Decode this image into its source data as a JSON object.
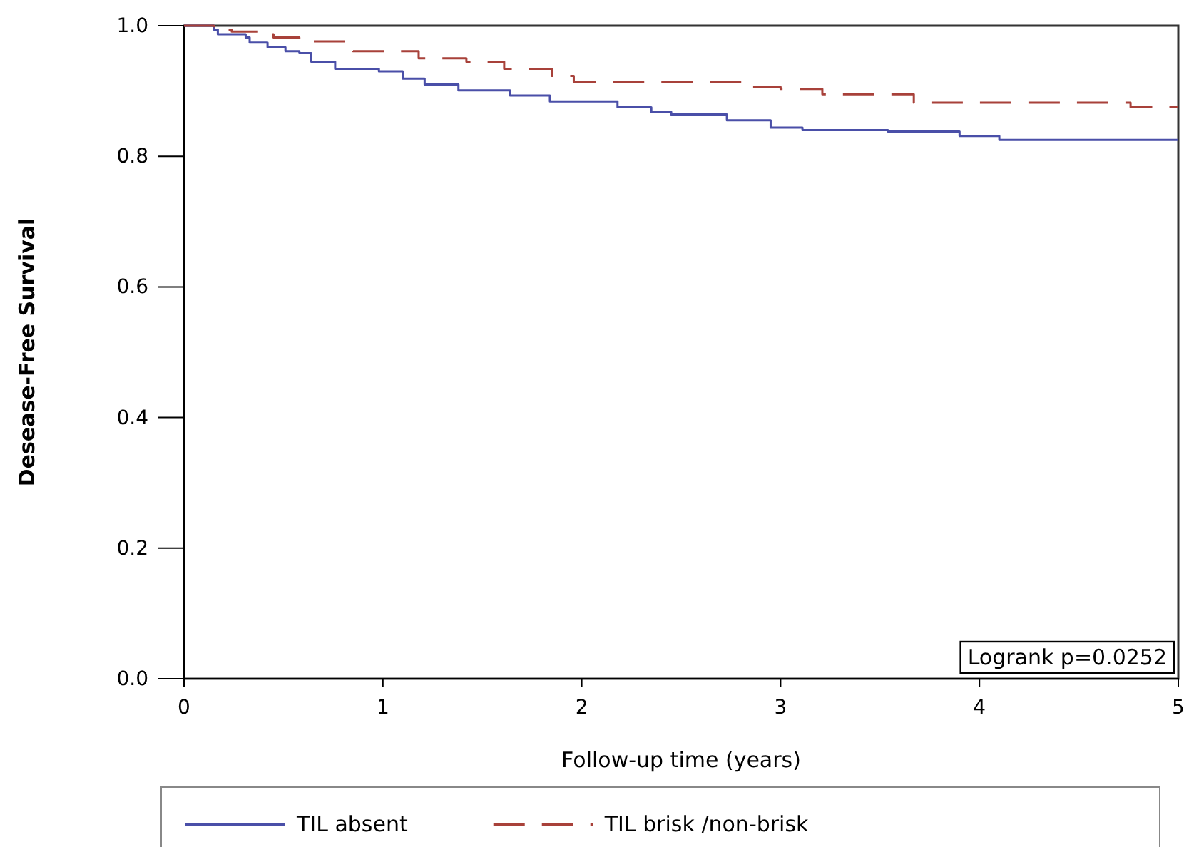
{
  "chart_data": {
    "type": "step",
    "xlabel": "Follow-up time (years)",
    "ylabel": "Desease-Free Survival",
    "xlim": [
      0,
      5
    ],
    "ylim": [
      0,
      1
    ],
    "xticks": [
      0,
      1,
      2,
      3,
      4,
      5
    ],
    "yticks": [
      {
        "value": 0,
        "label": "0.0"
      },
      {
        "value": 0.2,
        "label": "0.2"
      },
      {
        "value": 0.4,
        "label": "0.4"
      },
      {
        "value": 0.6,
        "label": "0.6"
      },
      {
        "value": 0.8,
        "label": "0.8"
      },
      {
        "value": 1,
        "label": "1.0"
      }
    ],
    "legend": "bottom",
    "grid": false,
    "annotations": [
      "Logrank p=0.0252"
    ],
    "series": [
      {
        "name": "TIL absent",
        "color": "#4a4fa8",
        "line_style": "solid",
        "x": [
          0,
          0.15,
          0.17,
          0.31,
          0.33,
          0.42,
          0.51,
          0.58,
          0.64,
          0.76,
          0.98,
          1.1,
          1.21,
          1.38,
          1.64,
          1.84,
          2.18,
          2.35,
          2.45,
          2.73,
          2.95,
          3.11,
          3.54,
          3.9,
          4.1,
          5
        ],
        "values": [
          1,
          0.994,
          0.987,
          0.982,
          0.974,
          0.967,
          0.961,
          0.958,
          0.945,
          0.934,
          0.93,
          0.919,
          0.91,
          0.901,
          0.893,
          0.884,
          0.875,
          0.868,
          0.864,
          0.855,
          0.844,
          0.84,
          0.838,
          0.831,
          0.825,
          0.825
        ]
      },
      {
        "name": "TIL brisk /non-brisk",
        "color": "#a8413a",
        "line_style": "dashed",
        "x": [
          0,
          0.15,
          0.24,
          0.39,
          0.45,
          0.58,
          0.85,
          1.18,
          1.42,
          1.61,
          1.85,
          1.96,
          2.81,
          3.0,
          3.21,
          3.67,
          4.76,
          5
        ],
        "values": [
          1,
          0.994,
          0.991,
          0.987,
          0.982,
          0.976,
          0.961,
          0.95,
          0.945,
          0.934,
          0.923,
          0.914,
          0.906,
          0.903,
          0.895,
          0.882,
          0.875,
          0.875
        ]
      }
    ]
  }
}
